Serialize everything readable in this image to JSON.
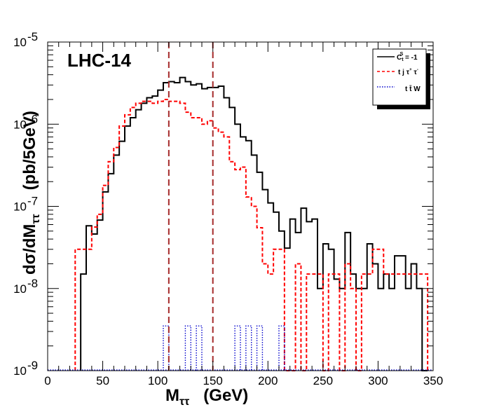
{
  "chart_data": {
    "type": "line",
    "style": "step-histogram",
    "annotation": "LHC-14",
    "xlabel": "M",
    "xlabel_sub": "ττ",
    "xlabel_unit": "(GeV)",
    "ylabel": "dσ/dM",
    "ylabel_sub": "ττ",
    "ylabel_unit": "(pb/5GeV)",
    "xlim": [
      0,
      350
    ],
    "ylim": [
      1e-09,
      1e-05
    ],
    "yscale": "log",
    "bin_width": 5,
    "x_ticks": [
      0,
      50,
      100,
      150,
      200,
      250,
      300,
      350
    ],
    "x_tick_labels": [
      "0",
      "50",
      "100",
      "150",
      "200",
      "250",
      "300",
      "350"
    ],
    "y_ticks": [
      1e-09,
      1e-08,
      1e-07,
      1e-06,
      1e-05
    ],
    "y_tick_labels": [
      {
        "base": "10",
        "exp": "-9"
      },
      {
        "base": "10",
        "exp": "-8"
      },
      {
        "base": "10",
        "exp": "-7"
      },
      {
        "base": "10",
        "exp": "-6"
      },
      {
        "base": "10",
        "exp": "-5"
      }
    ],
    "vertical_lines": [
      110,
      150
    ],
    "vertical_line_color": "#a52a2a",
    "legend": {
      "placement": "top-right",
      "entries": [
        {
          "label": "C",
          "label_sup": "S",
          "label_sub": "t",
          "label_rest": " = -1",
          "color": "#000000",
          "dash": "solid"
        },
        {
          "label": "t j τ",
          "label_sup": "+",
          "label_rest": " τ",
          "label_sup2": "-",
          "color": "#ff0000",
          "dash": "dashed"
        },
        {
          "label": "t t̄ W",
          "color": "#0000cc",
          "dash": "dotted"
        }
      ]
    },
    "series": [
      {
        "name": "C_t^S = -1",
        "color": "#000000",
        "bin_starts": [
          30,
          35,
          40,
          45,
          50,
          55,
          60,
          65,
          70,
          75,
          80,
          85,
          90,
          95,
          100,
          105,
          110,
          115,
          120,
          125,
          130,
          135,
          140,
          145,
          150,
          155,
          160,
          165,
          170,
          175,
          180,
          185,
          190,
          195,
          200,
          205,
          210,
          215,
          220,
          225,
          230,
          235,
          240,
          245,
          250,
          255,
          260,
          265,
          270,
          275,
          280,
          285,
          290,
          295,
          300,
          305,
          310,
          315,
          320,
          325,
          330,
          335,
          340
        ],
        "values": [
          1.5e-08,
          5.8e-08,
          4.6e-08,
          6.8e-08,
          1.5e-07,
          2.5e-07,
          4.2e-07,
          6.2e-07,
          9.5e-07,
          1.2e-06,
          1.5e-06,
          1.8e-06,
          2.1e-06,
          2.2e-06,
          2.6e-06,
          3.2e-06,
          3.3e-06,
          3.2e-06,
          3.7e-06,
          3.3e-06,
          3e-06,
          3.1e-06,
          2.7e-06,
          2.8e-06,
          2.8e-06,
          2.9e-06,
          2.1e-06,
          1.6e-06,
          1e-06,
          7e-07,
          6.3e-07,
          4.2e-07,
          2.6e-07,
          1.6e-07,
          1.1e-07,
          8.5e-08,
          5e-08,
          3.1e-08,
          7e-08,
          4.8e-08,
          9.5e-08,
          6.5e-08,
          7e-08,
          1e-08,
          3.5e-08,
          3e-08,
          1.3e-08,
          1e-08,
          4.8e-08,
          1.5e-08,
          1e-08,
          1e-08,
          3.5e-08,
          2e-08,
          1e-08,
          1.5e-08,
          1e-08,
          2.5e-08,
          2.5e-08,
          1e-08,
          2e-08,
          1e-08,
          1e-09
        ]
      },
      {
        "name": "t j τ+ τ-",
        "color": "#ff0000",
        "bin_starts": [
          25,
          30,
          35,
          40,
          45,
          50,
          55,
          60,
          65,
          70,
          75,
          80,
          85,
          90,
          95,
          100,
          105,
          110,
          115,
          120,
          125,
          130,
          135,
          140,
          145,
          150,
          155,
          160,
          165,
          170,
          175,
          180,
          185,
          190,
          195,
          200,
          205,
          210,
          215,
          220,
          225,
          230,
          235,
          240,
          245,
          250,
          255,
          260,
          265,
          270,
          275,
          280,
          285,
          290,
          295,
          300,
          305,
          310,
          315,
          320,
          325,
          330,
          335,
          340
        ],
        "values": [
          3e-08,
          3e-08,
          3e-08,
          5.6e-08,
          8e-08,
          1.8e-07,
          3.5e-07,
          5.2e-07,
          9.5e-07,
          1.3e-06,
          1.6e-06,
          1.8e-06,
          1.9e-06,
          1.9e-06,
          1.8e-06,
          1.9e-06,
          2e-06,
          1.9e-06,
          1.9e-06,
          1.8e-06,
          1.4e-06,
          1.2e-06,
          1.2e-06,
          1e-06,
          1.1e-06,
          9e-07,
          8e-07,
          7e-07,
          3.5e-07,
          2.8e-07,
          3e-07,
          1.3e-07,
          1e-07,
          5.5e-08,
          2e-08,
          1.5e-08,
          3e-08,
          3e-08,
          1e-09,
          1e-09,
          2e-08,
          1e-09,
          1.5e-08,
          1.5e-08,
          1.5e-08,
          1e-09,
          1.5e-08,
          1.5e-08,
          1e-09,
          2e-08,
          1e-08,
          1e-09,
          1.5e-08,
          1.5e-08,
          3e-08,
          3e-08,
          1.5e-08,
          1.5e-08,
          1.5e-08,
          1.5e-08,
          1.5e-08,
          1.5e-08,
          1.5e-08,
          1.5e-08
        ]
      },
      {
        "name": "t t̄ W",
        "color": "#0000cc",
        "bin_starts": [
          105,
          125,
          135,
          170,
          180,
          190,
          210
        ],
        "values": [
          3.5e-09,
          3.5e-09,
          3.5e-09,
          3.5e-09,
          3.5e-09,
          3.5e-09,
          3.5e-09
        ]
      }
    ]
  }
}
